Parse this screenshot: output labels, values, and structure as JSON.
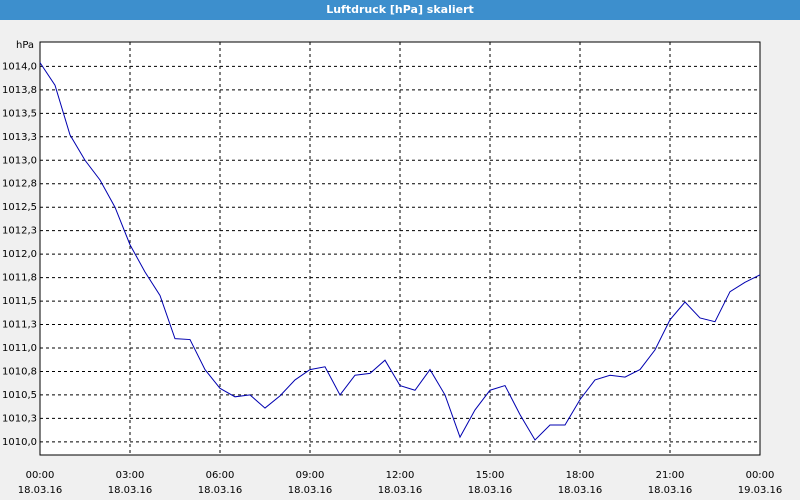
{
  "chart_data": {
    "type": "line",
    "title": "Luftdruck [hPa] skaliert",
    "y_label": "hPa",
    "x": [
      0,
      0.5,
      1,
      1.5,
      2,
      2.5,
      3,
      3.5,
      4,
      4.5,
      5,
      5.5,
      6,
      6.5,
      7,
      7.5,
      8,
      8.5,
      9,
      9.5,
      10,
      10.5,
      11,
      11.5,
      12,
      12.5,
      13,
      13.5,
      14,
      14.5,
      15,
      15.5,
      16,
      16.5,
      17,
      17.5,
      18,
      18.5,
      19,
      19.5,
      20,
      20.5,
      21,
      21.5,
      22,
      22.5,
      23,
      23.5,
      24
    ],
    "series": [
      {
        "name": "Luftdruck",
        "color": "#0000b0",
        "values": [
          1014.04,
          1013.8,
          1013.27,
          1013.0,
          1012.79,
          1012.5,
          1012.1,
          1011.81,
          1011.56,
          1011.1,
          1011.09,
          1010.77,
          1010.57,
          1010.48,
          1010.5,
          1010.36,
          1010.49,
          1010.66,
          1010.77,
          1010.8,
          1010.5,
          1010.71,
          1010.73,
          1010.87,
          1010.6,
          1010.55,
          1010.77,
          1010.5,
          1010.05,
          1010.34,
          1010.55,
          1010.6,
          1010.29,
          1010.02,
          1010.18,
          1010.18,
          1010.45,
          1010.66,
          1010.71,
          1010.69,
          1010.77,
          1010.98,
          1011.3,
          1011.49,
          1011.32,
          1011.28,
          1011.6,
          1011.7,
          1011.78
        ]
      }
    ],
    "xlim": [
      0,
      24
    ],
    "xticks": [
      {
        "value": 0,
        "label": "00:00",
        "date": "18.03.16"
      },
      {
        "value": 3,
        "label": "03:00",
        "date": "18.03.16"
      },
      {
        "value": 6,
        "label": "06:00",
        "date": "18.03.16"
      },
      {
        "value": 9,
        "label": "09:00",
        "date": "18.03.16"
      },
      {
        "value": 12,
        "label": "12:00",
        "date": "18.03.16"
      },
      {
        "value": 15,
        "label": "15:00",
        "date": "18.03.16"
      },
      {
        "value": 18,
        "label": "18:00",
        "date": "18.03.16"
      },
      {
        "value": 21,
        "label": "21:00",
        "date": "18.03.16"
      },
      {
        "value": 24,
        "label": "00:00",
        "date": "19.03.16"
      }
    ],
    "ylim": [
      1009.86,
      1014.26
    ],
    "yticks": [
      {
        "value": 1010,
        "label": "1010,0"
      },
      {
        "value": 1010.25,
        "label": "1010,3"
      },
      {
        "value": 1010.5,
        "label": "1010,5"
      },
      {
        "value": 1010.75,
        "label": "1010,8"
      },
      {
        "value": 1011,
        "label": "1011,0"
      },
      {
        "value": 1011.25,
        "label": "1011,3"
      },
      {
        "value": 1011.5,
        "label": "1011,5"
      },
      {
        "value": 1011.75,
        "label": "1011,8"
      },
      {
        "value": 1012,
        "label": "1012,0"
      },
      {
        "value": 1012.25,
        "label": "1012,3"
      },
      {
        "value": 1012.5,
        "label": "1012,5"
      },
      {
        "value": 1012.75,
        "label": "1012,8"
      },
      {
        "value": 1013,
        "label": "1013,0"
      },
      {
        "value": 1013.25,
        "label": "1013,3"
      },
      {
        "value": 1013.5,
        "label": "1013,5"
      },
      {
        "value": 1013.75,
        "label": "1013,8"
      },
      {
        "value": 1014,
        "label": "1014,0"
      }
    ],
    "grid": true
  }
}
